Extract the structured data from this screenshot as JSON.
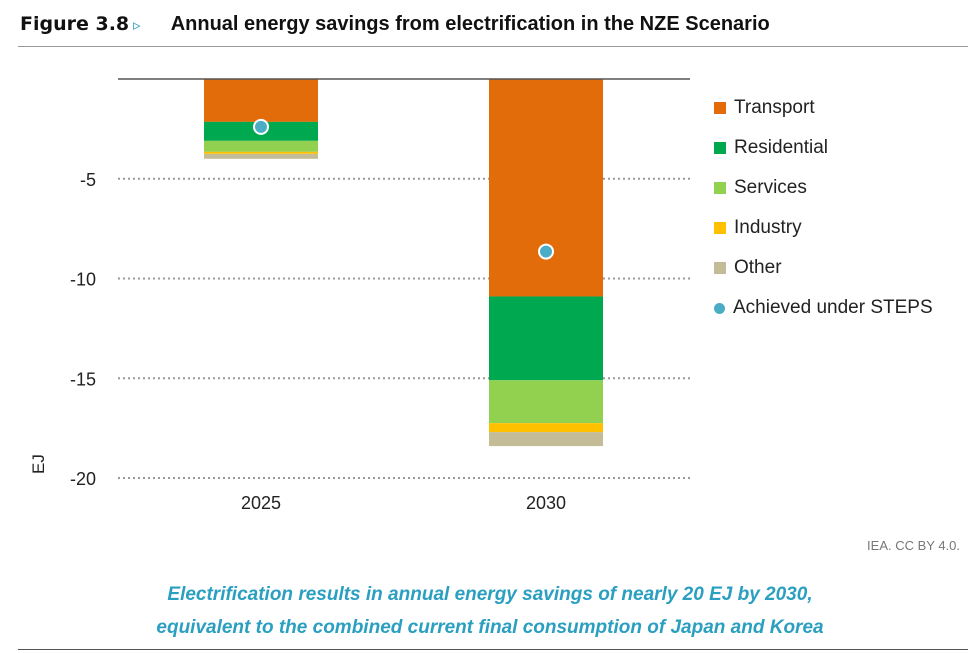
{
  "figure": {
    "label": "Figure 3.8",
    "marker": "▹",
    "title": "Annual energy savings from electrification in the NZE Scenario"
  },
  "credit": "IEA. CC BY 4.0.",
  "caption": {
    "line1": "Electrification results in annual energy savings of nearly 20 EJ by 2030,",
    "line2": "equivalent to the combined current final consumption of Japan and Korea"
  },
  "chart_data": {
    "type": "bar",
    "stacked": true,
    "categories": [
      "2025",
      "2030"
    ],
    "ylabel": "EJ",
    "ylim": [
      -20,
      0
    ],
    "yticks": [
      -5,
      -10,
      -15,
      -20
    ],
    "grid": "dotted horizontal",
    "legend_position": "right",
    "series": [
      {
        "name": "Transport",
        "color": "#e36c0a",
        "values": [
          -2.15,
          -10.9
        ]
      },
      {
        "name": "Residential",
        "color": "#00a84f",
        "values": [
          -0.95,
          -4.2
        ]
      },
      {
        "name": "Services",
        "color": "#92d050",
        "values": [
          -0.55,
          -2.15
        ]
      },
      {
        "name": "Industry",
        "color": "#ffc000",
        "values": [
          -0.1,
          -0.45
        ]
      },
      {
        "name": "Other",
        "color": "#c4bc96",
        "values": [
          -0.25,
          -0.7
        ]
      }
    ],
    "markers": {
      "name": "Achieved under STEPS",
      "color": "#4bacc6",
      "values": [
        -2.4,
        -8.65
      ]
    }
  }
}
